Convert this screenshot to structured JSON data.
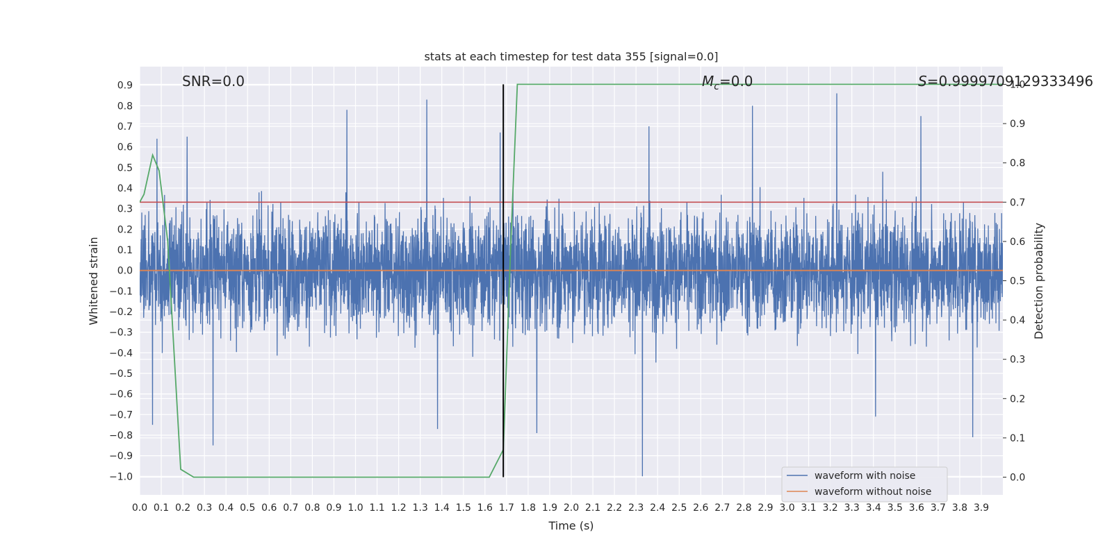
{
  "chart_data": {
    "type": "line",
    "title": "stats at each timestep for test data 355 [signal=0.0]",
    "xlabel": "Time (s)",
    "ylabel": "Whitened strain",
    "ylabel_right": "Detection probability",
    "xlim": [
      0.0,
      4.0
    ],
    "ylim": [
      -1.09,
      0.99
    ],
    "ylim_right": [
      -0.045,
      1.045
    ],
    "x_ticks": [
      "0.0",
      "0.1",
      "0.2",
      "0.3",
      "0.4",
      "0.5",
      "0.6",
      "0.7",
      "0.8",
      "0.9",
      "1.0",
      "1.1",
      "1.2",
      "1.3",
      "1.4",
      "1.5",
      "1.6",
      "1.7",
      "1.8",
      "1.9",
      "2.0",
      "2.1",
      "2.2",
      "2.3",
      "2.4",
      "2.5",
      "2.6",
      "2.7",
      "2.8",
      "2.9",
      "3.0",
      "3.1",
      "3.2",
      "3.3",
      "3.4",
      "3.5",
      "3.6",
      "3.7",
      "3.8",
      "3.9"
    ],
    "y_ticks": [
      "0.9",
      "0.8",
      "0.7",
      "0.6",
      "0.5",
      "0.4",
      "0.3",
      "0.2",
      "0.1",
      "0.0",
      "-0.1",
      "-0.2",
      "-0.3",
      "-0.4",
      "-0.5",
      "-0.6",
      "-0.7",
      "-0.8",
      "-0.9",
      "-1.0"
    ],
    "y_ticks_right": [
      "1.0",
      "0.9",
      "0.8",
      "0.7",
      "0.6",
      "0.5",
      "0.4",
      "0.3",
      "0.2",
      "0.1",
      "0.0"
    ],
    "annotations": {
      "snr": "SNR=0.0",
      "mc_symbol": "M",
      "mc_sub": "c",
      "mc_value": "=0.0",
      "s_symbol": "S",
      "s_value": "=0.9999709129333496"
    },
    "legend": {
      "placement": "lower-right",
      "entries": [
        "waveform with noise",
        "waveform without noise"
      ]
    },
    "threshold_line": {
      "y": 0.7,
      "color": "#c44e52"
    },
    "vertical_marker": {
      "x": 1.685,
      "color": "#000000"
    },
    "series": [
      {
        "name": "waveform with noise",
        "color": "#4c72b0",
        "description_values": "noisy whitened strain oscillating roughly between -1.0 and 0.86 over 0-4 s"
      },
      {
        "name": "waveform without noise",
        "color": "#dd8452",
        "x": [
          0.0,
          4.0
        ],
        "y": [
          0.0,
          0.0
        ]
      },
      {
        "name": "detection probability",
        "color": "#55a868",
        "axis": "right",
        "x": [
          0.0,
          0.02,
          0.04,
          0.06,
          0.09,
          0.13,
          0.19,
          0.25,
          1.0,
          1.5,
          1.62,
          1.685,
          1.72,
          1.75,
          2.5,
          3.0,
          3.5,
          4.0
        ],
        "y": [
          0.7,
          0.72,
          0.77,
          0.82,
          0.78,
          0.6,
          0.02,
          0.0,
          0.0,
          0.0,
          0.0,
          0.07,
          0.6,
          1.0,
          1.0,
          1.0,
          1.0,
          1.0
        ]
      }
    ],
    "noise_spikes": [
      {
        "x": 0.06,
        "y": -0.75
      },
      {
        "x": 0.08,
        "y": 0.64
      },
      {
        "x": 0.22,
        "y": 0.65
      },
      {
        "x": 0.34,
        "y": -0.85
      },
      {
        "x": 0.96,
        "y": 0.78
      },
      {
        "x": 1.33,
        "y": 0.83
      },
      {
        "x": 1.38,
        "y": -0.77
      },
      {
        "x": 1.67,
        "y": 0.67
      },
      {
        "x": 1.84,
        "y": -0.79
      },
      {
        "x": 2.33,
        "y": -1.0
      },
      {
        "x": 2.36,
        "y": 0.7
      },
      {
        "x": 2.84,
        "y": 0.8
      },
      {
        "x": 3.23,
        "y": 0.86
      },
      {
        "x": 3.41,
        "y": -0.71
      },
      {
        "x": 3.62,
        "y": 0.75
      },
      {
        "x": 3.86,
        "y": -0.81
      }
    ],
    "grid": true
  }
}
